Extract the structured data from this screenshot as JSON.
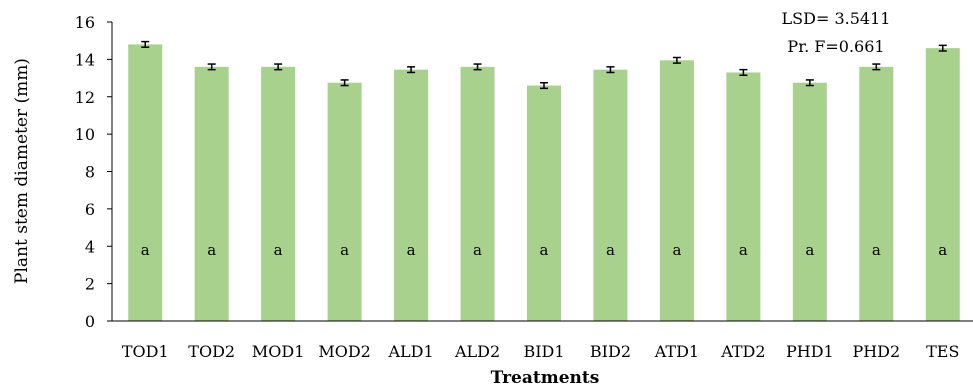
{
  "chart_data": {
    "type": "bar",
    "title": "",
    "xlabel": "Treatments",
    "ylabel": "Plant stem diameter (mm)",
    "ylim": [
      0,
      16
    ],
    "yticks": [
      0,
      2,
      4,
      6,
      8,
      10,
      12,
      14,
      16
    ],
    "grid": false,
    "bar_color": "#a9d18e",
    "error_color": "#000000",
    "categories": [
      "TOD1",
      "TOD2",
      "MOD1",
      "MOD2",
      "ALD1",
      "ALD2",
      "BID1",
      "BID2",
      "ATD1",
      "ATD2",
      "PHD1",
      "PHD2",
      "TES"
    ],
    "values": [
      14.8,
      13.6,
      13.6,
      12.75,
      13.45,
      13.6,
      12.6,
      13.45,
      13.95,
      13.3,
      12.75,
      13.6,
      14.6
    ],
    "error": [
      0.15,
      0.15,
      0.15,
      0.15,
      0.15,
      0.15,
      0.15,
      0.15,
      0.15,
      0.15,
      0.15,
      0.15,
      0.15
    ],
    "significance": [
      "a",
      "a",
      "a",
      "a",
      "a",
      "a",
      "a",
      "a",
      "a",
      "a",
      "a",
      "a",
      "a"
    ],
    "annotations": [
      "LSD= 3.5411",
      "Pr. F=0.661"
    ]
  }
}
